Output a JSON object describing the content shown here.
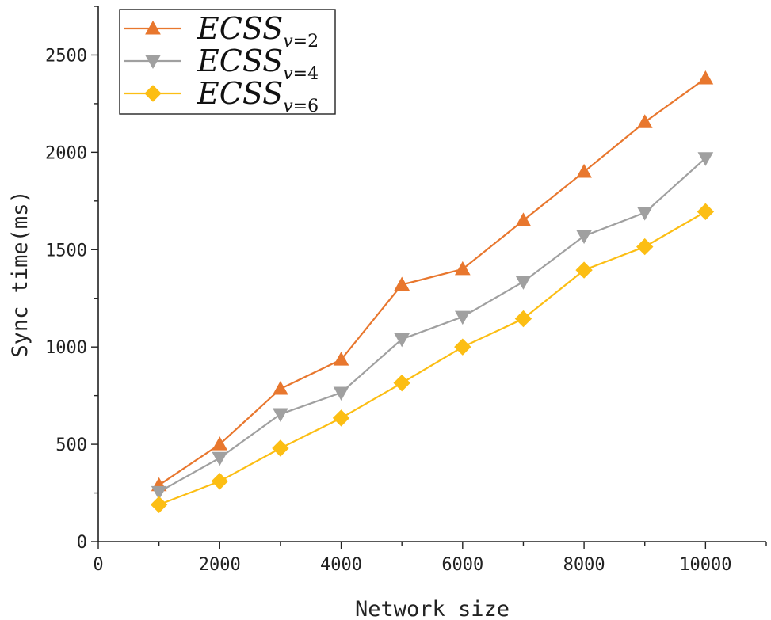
{
  "chart_data": {
    "type": "line",
    "title": "",
    "xlabel": "Network size",
    "ylabel": "Sync time(ms)",
    "xlim": [
      0,
      11000
    ],
    "ylim": [
      0,
      2750
    ],
    "x_ticks": [
      0,
      2000,
      4000,
      6000,
      8000,
      10000
    ],
    "y_ticks": [
      0,
      500,
      1000,
      1500,
      2000,
      2500
    ],
    "x_tick_labels": [
      "0",
      "2000",
      "4000",
      "6000",
      "8000",
      "10000"
    ],
    "y_tick_labels": [
      "0",
      "500",
      "1000",
      "1500",
      "2000",
      "2500"
    ],
    "x": [
      1000,
      2000,
      3000,
      4000,
      5000,
      6000,
      7000,
      8000,
      9000,
      10000
    ],
    "legend_position": "top-left",
    "series": [
      {
        "name": "ECSS_{v=2}",
        "label_main": "ECSS",
        "label_sub_var": "v",
        "label_sub_rest": "=2",
        "color": "#E8772E",
        "marker": "triangle-up",
        "values": [
          290,
          500,
          785,
          935,
          1320,
          1400,
          1650,
          1900,
          2155,
          2380
        ]
      },
      {
        "name": "ECSS_{v=4}",
        "label_main": "ECSS",
        "label_sub_var": "v",
        "label_sub_rest": "=4",
        "color": "#A0A0A0",
        "marker": "triangle-down",
        "values": [
          255,
          430,
          655,
          765,
          1040,
          1155,
          1335,
          1570,
          1690,
          1970
        ]
      },
      {
        "name": "ECSS_{v=6}",
        "label_main": "ECSS",
        "label_sub_var": "v",
        "label_sub_rest": "=6",
        "color": "#FCBE14",
        "marker": "diamond",
        "values": [
          190,
          310,
          480,
          635,
          815,
          1000,
          1145,
          1395,
          1515,
          1695
        ]
      }
    ]
  }
}
